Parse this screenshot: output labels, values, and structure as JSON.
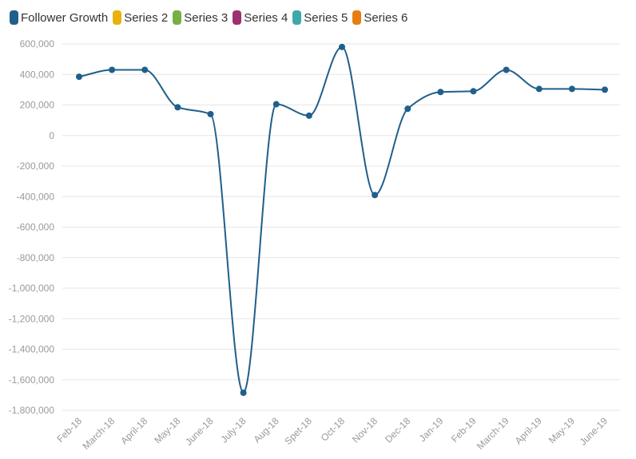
{
  "chart_data": {
    "type": "line",
    "categories": [
      "Feb-18",
      "March-18",
      "April-18",
      "May-18",
      "June-18",
      "July-18",
      "Aug-18",
      "Spet-18",
      "Oct-18",
      "Nov-18",
      "Dec-18",
      "Jan-19",
      "Feb-19",
      "March-19",
      "April-19",
      "May-19",
      "June-19"
    ],
    "series": [
      {
        "name": "Follower Growth",
        "color": "#1f5f8b",
        "values": [
          385000,
          430000,
          430000,
          185000,
          140000,
          -1685000,
          205000,
          130000,
          580000,
          -390000,
          175000,
          285000,
          290000,
          430000,
          305000,
          305000,
          300000
        ]
      }
    ],
    "legend": {
      "position": "top-left",
      "items": [
        {
          "label": "Follower Growth",
          "color": "#1f5f8b"
        },
        {
          "label": "Series 2",
          "color": "#e8b10c"
        },
        {
          "label": "Series 3",
          "color": "#76b043"
        },
        {
          "label": "Series 4",
          "color": "#9b2f72"
        },
        {
          "label": "Series 5",
          "color": "#3ea8a8"
        },
        {
          "label": "Series 6",
          "color": "#e67d10"
        }
      ]
    },
    "y_ticks": [
      600000,
      400000,
      200000,
      0,
      -200000,
      -400000,
      -600000,
      -800000,
      -1000000,
      -1200000,
      -1400000,
      -1600000,
      -1800000
    ],
    "y_tick_labels": [
      "600,000",
      "400,000",
      "200,000",
      "0",
      "-200,000",
      "-400,000",
      "-600,000",
      "-800,000",
      "-1,000,000",
      "-1,200,000",
      "-1,400,000",
      "-1,600,000",
      "-1,800,000"
    ],
    "ylim": [
      -1800000,
      600000
    ],
    "grid": true,
    "line_style": "smooth"
  }
}
